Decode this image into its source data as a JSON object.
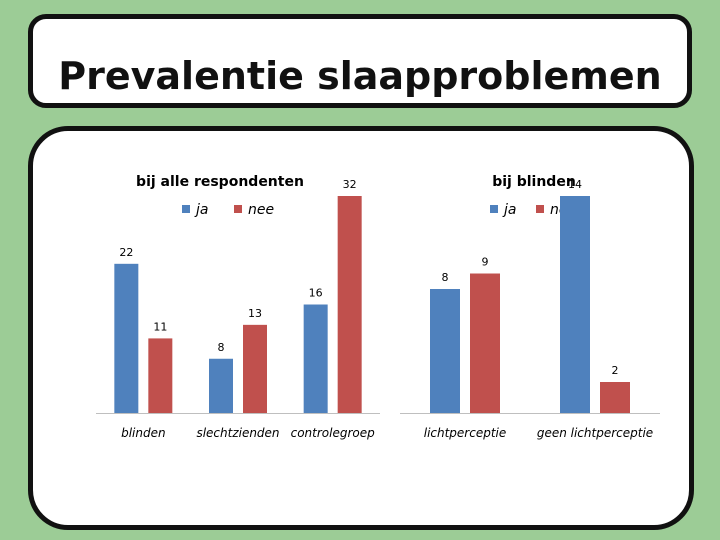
{
  "slide_title": "Prevalentie slaapproblemen",
  "colors": {
    "ja": "#4f81bd",
    "nee": "#c0504d"
  },
  "chart_data": [
    {
      "type": "bar",
      "title": "bij alle respondenten",
      "categories": [
        "blinden",
        "slechtzienden",
        "controlegroep"
      ],
      "series": [
        {
          "name": "ja",
          "values": [
            22,
            8,
            16
          ]
        },
        {
          "name": "nee",
          "values": [
            11,
            13,
            32
          ]
        }
      ],
      "legend": [
        "ja",
        "nee"
      ],
      "ylim": [
        0,
        32
      ],
      "grid": false
    },
    {
      "type": "bar",
      "title": "bij blinden",
      "categories": [
        "lichtperceptie",
        "geen lichtperceptie"
      ],
      "series": [
        {
          "name": "ja",
          "values": [
            8,
            14
          ]
        },
        {
          "name": "nee",
          "values": [
            9,
            2
          ]
        }
      ],
      "legend": [
        "ja",
        "nee"
      ],
      "ylim": [
        0,
        14
      ],
      "grid": false
    }
  ]
}
